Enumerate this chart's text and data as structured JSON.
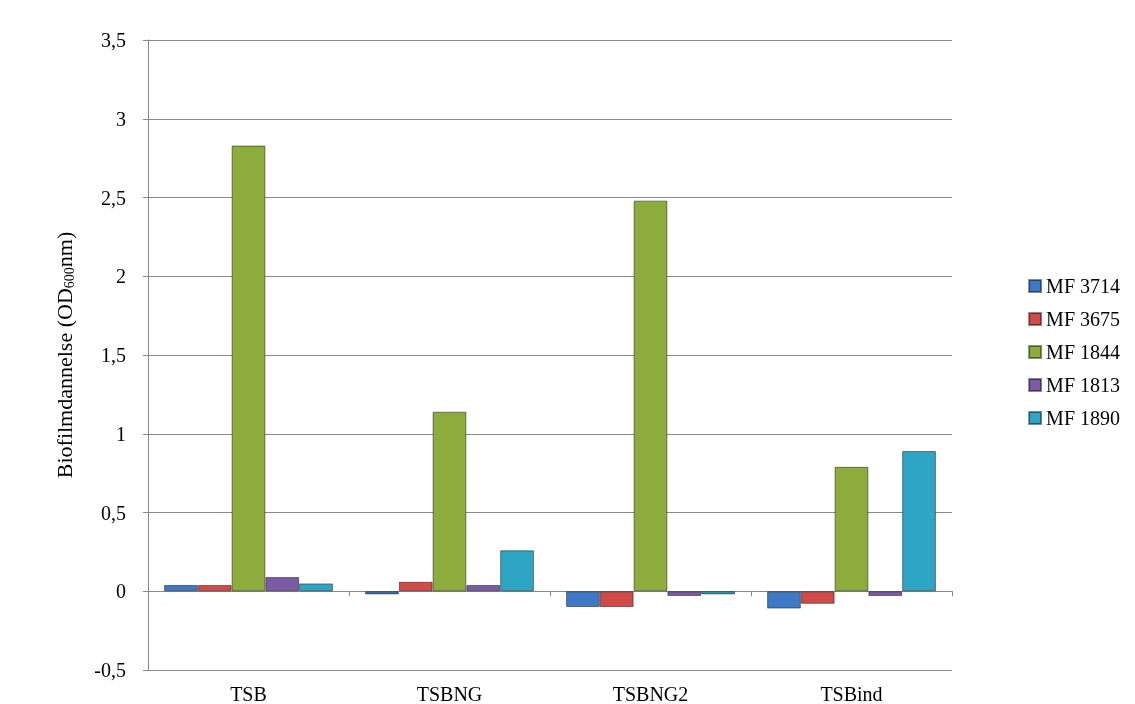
{
  "chart_data": {
    "type": "bar",
    "ylabel": "Biofilmdannelse (OD$_{600}$nm)",
    "categories": [
      "TSB",
      "TSBNG",
      "TSBNG2",
      "TSBind"
    ],
    "series": [
      {
        "name": "MF 3714",
        "color": "#3f78c4",
        "values": [
          0.04,
          -0.02,
          -0.1,
          -0.11
        ]
      },
      {
        "name": "MF 3675",
        "color": "#d04a48",
        "values": [
          0.04,
          0.06,
          -0.1,
          -0.08
        ]
      },
      {
        "name": "MF 1844",
        "color": "#8cad3c",
        "values": [
          2.83,
          1.14,
          2.48,
          0.79
        ]
      },
      {
        "name": "MF 1813",
        "color": "#7b5aa6",
        "values": [
          0.09,
          0.04,
          -0.03,
          -0.03
        ]
      },
      {
        "name": "MF 1890",
        "color": "#2ea5c4",
        "values": [
          0.05,
          0.26,
          -0.02,
          0.89
        ]
      }
    ],
    "ylim": [
      -0.5,
      3.5
    ],
    "yticks": [
      {
        "value": -0.5,
        "label": "-0,5"
      },
      0,
      {
        "value": 0.5,
        "label": "0,5"
      },
      1,
      {
        "value": 1.5,
        "label": "1,5"
      },
      2,
      {
        "value": 2.5,
        "label": "2,5"
      },
      3,
      {
        "value": 3.5,
        "label": "3,5"
      }
    ],
    "grid": "y",
    "legend": "right"
  }
}
